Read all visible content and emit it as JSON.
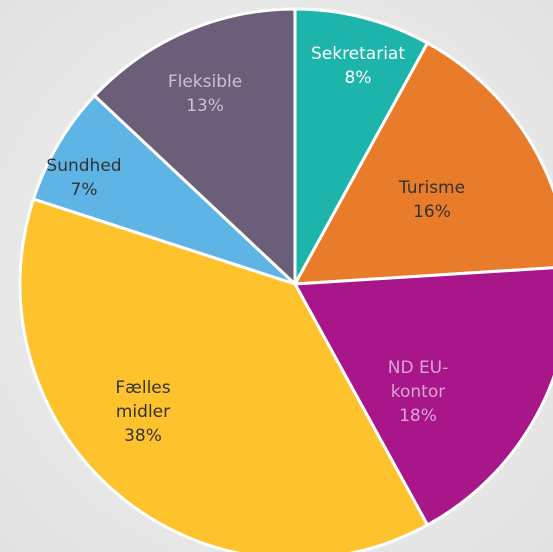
{
  "chart_data": {
    "type": "pie",
    "categories": [
      "Sekretariat",
      "Turisme",
      "ND EU-kontor",
      "Fælles midler",
      "Sundhed",
      "Fleksible"
    ],
    "values": [
      8,
      16,
      18,
      38,
      7,
      13
    ],
    "value_labels": [
      "8%",
      "16%",
      "18%",
      "38%",
      "7%",
      "13%"
    ],
    "colors": [
      "#1db5ab",
      "#e87c2a",
      "#a8168a",
      "#fdc22c",
      "#5fb4e6",
      "#6b5e78"
    ],
    "label_colors": [
      "#ffffff",
      "#333333",
      "#d9a6d2",
      "#333333",
      "#333333",
      "#c9c2cf"
    ]
  }
}
